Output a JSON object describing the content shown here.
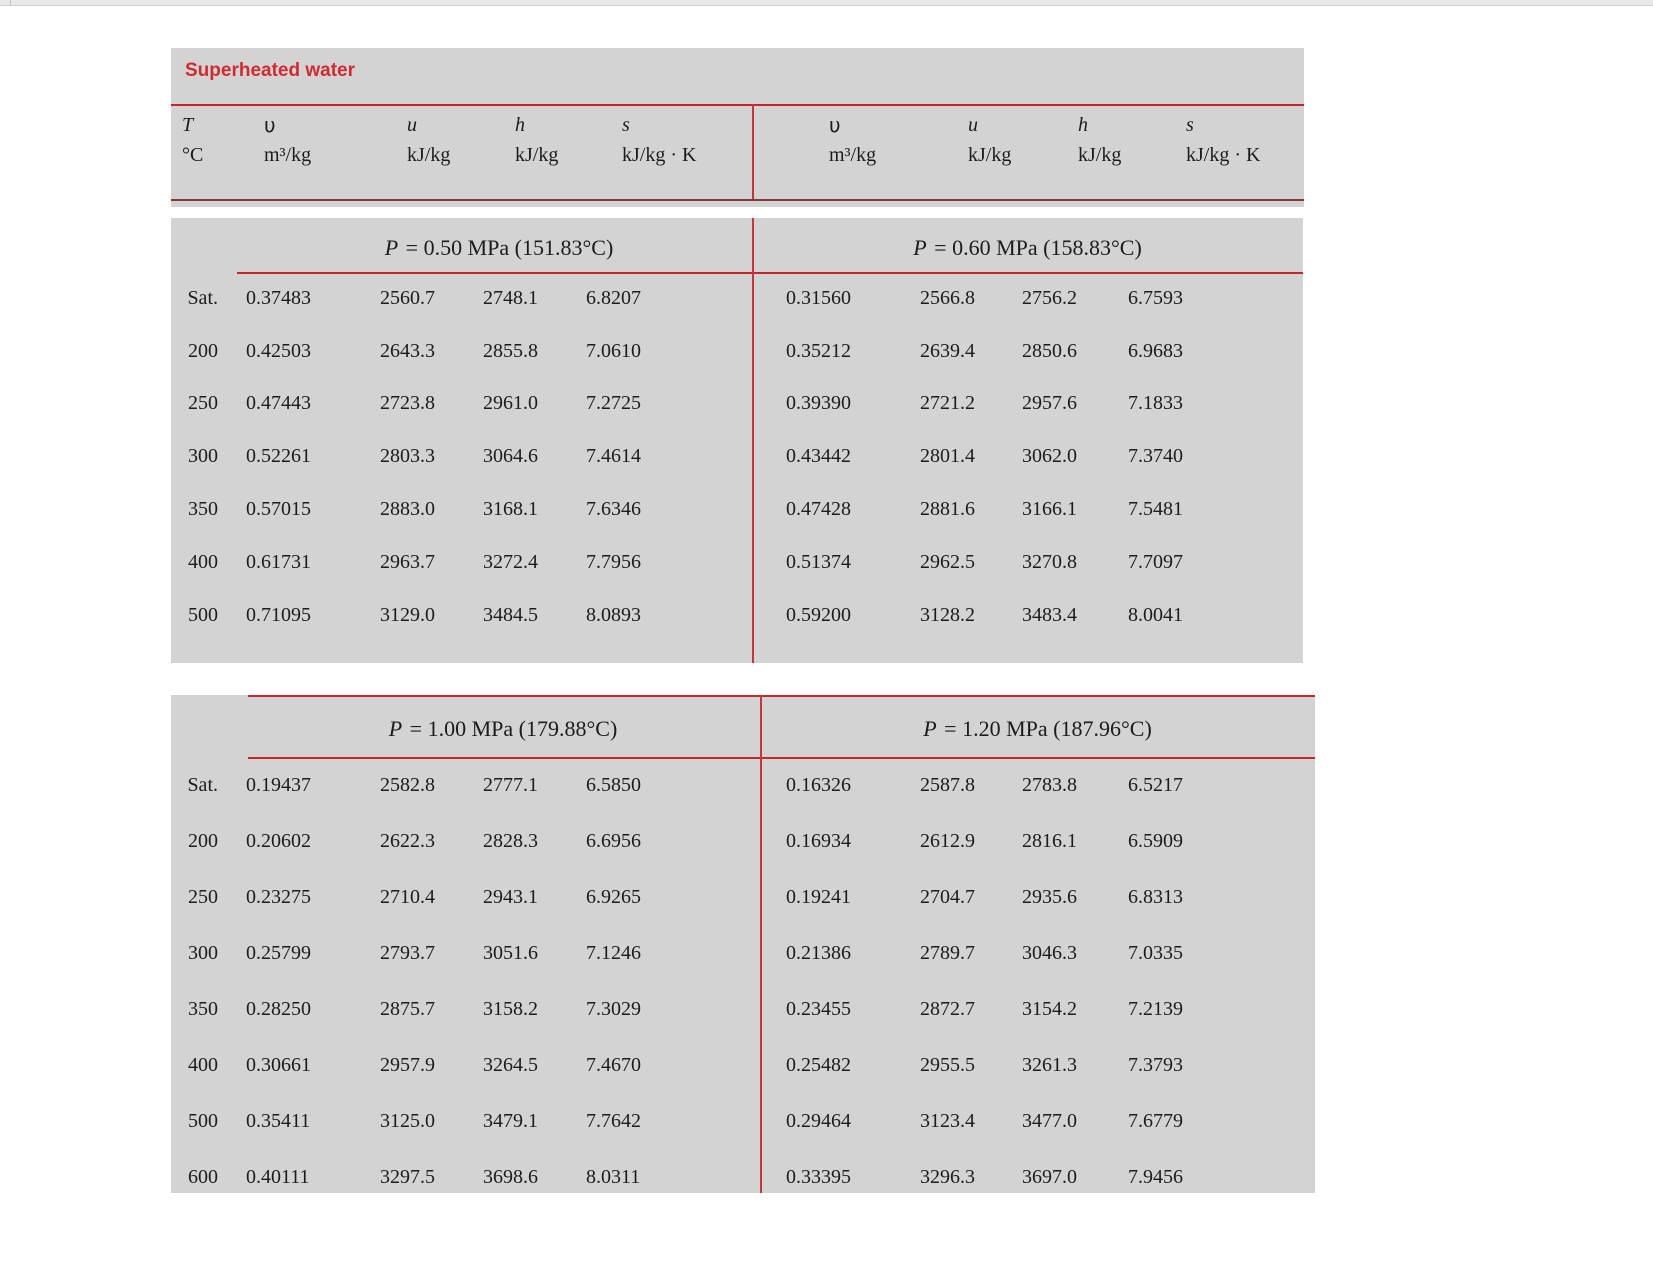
{
  "title": "Superheated water",
  "colors": {
    "accent_red_title": "#cf2b31",
    "rule_red": "#c4262c",
    "panel_gray": "#d3d3d3",
    "header_bottom_dark": "#8a3537"
  },
  "header": {
    "t_symbol": "T",
    "t_unit": "°C",
    "symbol_names": [
      "v",
      "u",
      "h",
      "s"
    ],
    "symbols": [
      "υ",
      "u",
      "h",
      "s"
    ],
    "units": [
      "m³/kg",
      "kJ/kg",
      "kJ/kg",
      "kJ/kg · K"
    ]
  },
  "tables": [
    {
      "sections": [
        {
          "p": "P",
          "rest": " = 0.50 MPa  (151.83°C)"
        },
        {
          "p": "P",
          "rest": " = 0.60 MPa  (158.83°C)"
        }
      ],
      "rows": [
        {
          "label": "Sat.",
          "left": [
            "0.37483",
            "2560.7",
            "2748.1",
            "6.8207"
          ],
          "right": [
            "0.31560",
            "2566.8",
            "2756.2",
            "6.7593"
          ]
        },
        {
          "label": "200",
          "left": [
            "0.42503",
            "2643.3",
            "2855.8",
            "7.0610"
          ],
          "right": [
            "0.35212",
            "2639.4",
            "2850.6",
            "6.9683"
          ]
        },
        {
          "label": "250",
          "left": [
            "0.47443",
            "2723.8",
            "2961.0",
            "7.2725"
          ],
          "right": [
            "0.39390",
            "2721.2",
            "2957.6",
            "7.1833"
          ]
        },
        {
          "label": "300",
          "left": [
            "0.52261",
            "2803.3",
            "3064.6",
            "7.4614"
          ],
          "right": [
            "0.43442",
            "2801.4",
            "3062.0",
            "7.3740"
          ]
        },
        {
          "label": "350",
          "left": [
            "0.57015",
            "2883.0",
            "3168.1",
            "7.6346"
          ],
          "right": [
            "0.47428",
            "2881.6",
            "3166.1",
            "7.5481"
          ]
        },
        {
          "label": "400",
          "left": [
            "0.61731",
            "2963.7",
            "3272.4",
            "7.7956"
          ],
          "right": [
            "0.51374",
            "2962.5",
            "3270.8",
            "7.7097"
          ]
        },
        {
          "label": "500",
          "left": [
            "0.71095",
            "3129.0",
            "3484.5",
            "8.0893"
          ],
          "right": [
            "0.59200",
            "3128.2",
            "3483.4",
            "8.0041"
          ]
        }
      ]
    },
    {
      "sections": [
        {
          "p": "P",
          "rest": " = 1.00 MPa  (179.88°C)"
        },
        {
          "p": "P",
          "rest": " = 1.20 MPa  (187.96°C)"
        }
      ],
      "rows": [
        {
          "label": "Sat.",
          "left": [
            "0.19437",
            "2582.8",
            "2777.1",
            "6.5850"
          ],
          "right": [
            "0.16326",
            "2587.8",
            "2783.8",
            "6.5217"
          ]
        },
        {
          "label": "200",
          "left": [
            "0.20602",
            "2622.3",
            "2828.3",
            "6.6956"
          ],
          "right": [
            "0.16934",
            "2612.9",
            "2816.1",
            "6.5909"
          ]
        },
        {
          "label": "250",
          "left": [
            "0.23275",
            "2710.4",
            "2943.1",
            "6.9265"
          ],
          "right": [
            "0.19241",
            "2704.7",
            "2935.6",
            "6.8313"
          ]
        },
        {
          "label": "300",
          "left": [
            "0.25799",
            "2793.7",
            "3051.6",
            "7.1246"
          ],
          "right": [
            "0.21386",
            "2789.7",
            "3046.3",
            "7.0335"
          ]
        },
        {
          "label": "350",
          "left": [
            "0.28250",
            "2875.7",
            "3158.2",
            "7.3029"
          ],
          "right": [
            "0.23455",
            "2872.7",
            "3154.2",
            "7.2139"
          ]
        },
        {
          "label": "400",
          "left": [
            "0.30661",
            "2957.9",
            "3264.5",
            "7.4670"
          ],
          "right": [
            "0.25482",
            "2955.5",
            "3261.3",
            "7.3793"
          ]
        },
        {
          "label": "500",
          "left": [
            "0.35411",
            "3125.0",
            "3479.1",
            "7.7642"
          ],
          "right": [
            "0.29464",
            "3123.4",
            "3477.0",
            "7.6779"
          ]
        },
        {
          "label": "600",
          "left": [
            "0.40111",
            "3297.5",
            "3698.6",
            "8.0311"
          ],
          "right": [
            "0.33395",
            "3296.3",
            "3697.0",
            "7.9456"
          ]
        }
      ]
    }
  ]
}
